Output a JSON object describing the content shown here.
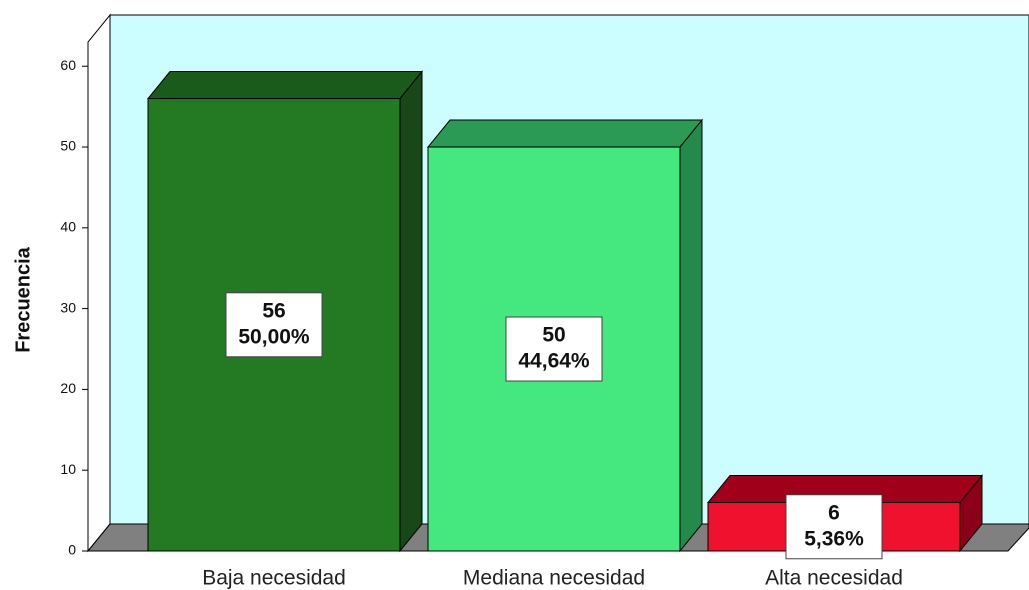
{
  "chart_data": {
    "type": "bar3d",
    "ylabel": "Frecuencia",
    "categories": [
      "Baja necesidad",
      "Mediana necesidad",
      "Alta necesidad"
    ],
    "values": [
      56,
      50,
      6
    ],
    "percentages": [
      50,
      44.64,
      5.36
    ],
    "percentage_labels": [
      "50,00%",
      "44,64%",
      "5,36%"
    ],
    "colors": [
      "#237a23",
      "#44e87e",
      "#f0112e"
    ],
    "top_colors": [
      "#1a5a1a",
      "#2a9a55",
      "#a0001a"
    ],
    "side_colors": [
      "#184818",
      "#248a4a",
      "#8b0016"
    ],
    "wall_color": "#ccfdff",
    "floor_color": "#808080",
    "ylim": [
      0,
      63
    ],
    "yticks": [
      0,
      10,
      20,
      30,
      40,
      50,
      60
    ]
  }
}
